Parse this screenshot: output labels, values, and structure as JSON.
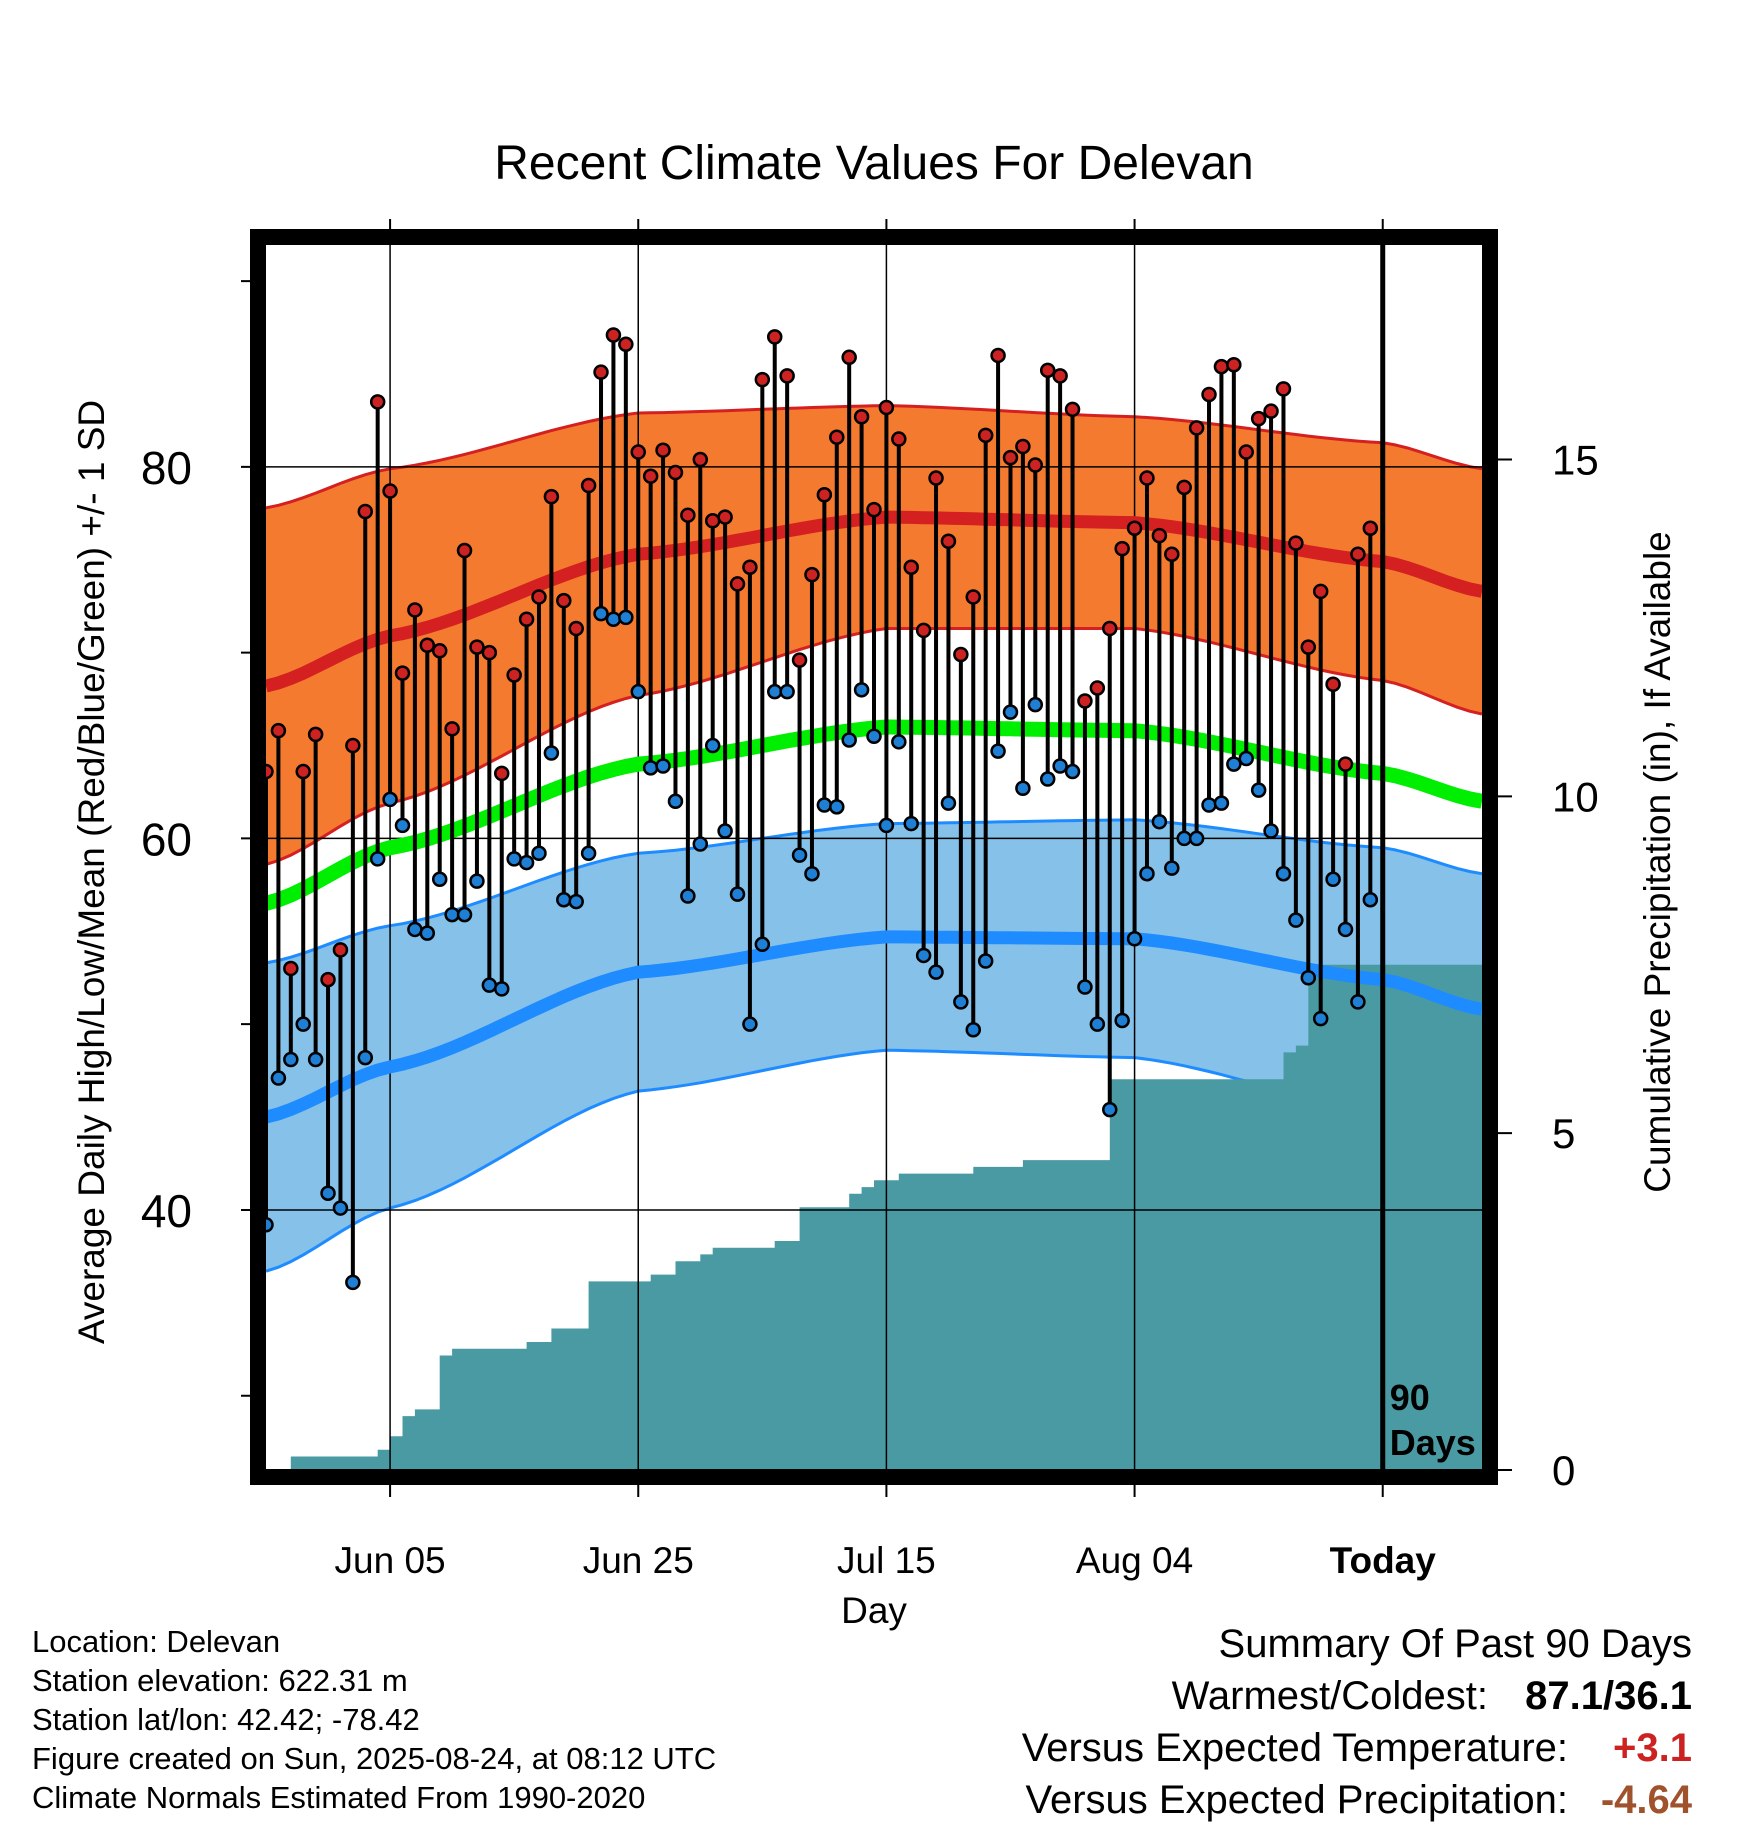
{
  "title": "Recent Climate Values For Delevan",
  "info": {
    "location": "Location: Delevan",
    "elevation": "Station elevation: 622.31 m",
    "latlon": "Station lat/lon: 42.42; -78.42",
    "created": "Figure created on Sun, 2025-08-24, at 08:12 UTC",
    "normals": "Climate Normals Estimated From 1990-2020"
  },
  "summary": {
    "heading": "Summary Of Past 90 Days",
    "warmest_label": "Warmest/Coldest:",
    "warmest_value": "87.1/36.1",
    "temp_label": "Versus Expected Temperature:",
    "temp_value": "+3.1",
    "temp_color": "#cc2222",
    "precip_label": "Versus Expected Precipitation:",
    "precip_value": "-4.64",
    "precip_color": "#a0522d"
  },
  "chart_data": {
    "type": "line",
    "title": "Recent Climate Values For Delevan",
    "xlabel": "Day",
    "ylabel": "Average Daily High/Low/Mean (Red/Blue/Green) +/- 1 SD",
    "y2label": "Cumulative Precipitation (in), If Available",
    "x_unit": "days relative to today (2025-08-24)",
    "xlim": [
      -90,
      8
    ],
    "ylim": [
      26,
      92
    ],
    "y2lim": [
      0,
      18.2
    ],
    "x_ticks": [
      {
        "x": -80,
        "label": "Jun 05"
      },
      {
        "x": -60,
        "label": "Jun 25"
      },
      {
        "x": -40,
        "label": "Jul 15"
      },
      {
        "x": -20,
        "label": "Aug 04"
      },
      {
        "x": 0,
        "label": "Today"
      }
    ],
    "y_ticks": [
      40,
      60,
      80
    ],
    "y2_ticks": [
      0,
      5,
      10,
      15
    ],
    "today_marker_label": [
      "90",
      "Days"
    ],
    "colors": {
      "high_band": "#f47a30",
      "high_mean": "#d42020",
      "low_band": "#85c1e8",
      "low_mean": "#1e8cff",
      "mean": "#00ee00",
      "precip": "#4a9aa4",
      "high_dot": "#cc2222",
      "low_dot": "#1e7fd4"
    },
    "normals": {
      "x": [
        -90,
        -80,
        -60,
        -40,
        -20,
        0,
        8
      ],
      "high_mean": [
        68.2,
        70.9,
        75.3,
        77.3,
        77.0,
        74.9,
        73.3
      ],
      "high_sd": [
        9.6,
        9.0,
        7.6,
        6.0,
        5.7,
        6.4,
        6.6
      ],
      "low_mean": [
        45.0,
        47.7,
        52.8,
        54.7,
        54.6,
        52.4,
        50.8
      ],
      "low_sd": [
        8.3,
        7.6,
        6.4,
        6.1,
        6.4,
        7.1,
        7.3
      ],
      "mean": [
        56.5,
        59.5,
        64.0,
        66.0,
        65.8,
        63.5,
        62.0
      ]
    },
    "series": [
      {
        "name": "High",
        "x": [
          -90,
          -89,
          -88,
          -87,
          -86,
          -85,
          -84,
          -83,
          -82,
          -81,
          -80,
          -79,
          -78,
          -77,
          -76,
          -75,
          -74,
          -73,
          -72,
          -71,
          -70,
          -69,
          -68,
          -67,
          -66,
          -65,
          -64,
          -63,
          -62,
          -61,
          -60,
          -59,
          -58,
          -57,
          -56,
          -55,
          -54,
          -53,
          -52,
          -51,
          -50,
          -49,
          -48,
          -47,
          -46,
          -45,
          -44,
          -43,
          -42,
          -41,
          -40,
          -39,
          -38,
          -37,
          -36,
          -35,
          -34,
          -33,
          -32,
          -31,
          -30,
          -29,
          -28,
          -27,
          -26,
          -25,
          -24,
          -23,
          -22,
          -21,
          -20,
          -19,
          -18,
          -17,
          -16,
          -15,
          -14,
          -13,
          -12,
          -11,
          -10,
          -9,
          -8,
          -7,
          -6,
          -5,
          -4,
          -3,
          -2,
          -1
        ],
        "values": [
          63.6,
          65.8,
          53.0,
          63.6,
          65.6,
          52.4,
          54.0,
          65.0,
          77.6,
          83.5,
          78.7,
          68.9,
          72.3,
          70.4,
          70.1,
          65.9,
          75.5,
          70.3,
          70.0,
          63.5,
          68.8,
          71.8,
          73.0,
          78.4,
          72.8,
          71.3,
          79.0,
          85.1,
          87.1,
          86.6,
          80.8,
          79.5,
          80.9,
          79.7,
          77.4,
          80.4,
          77.1,
          77.3,
          73.7,
          74.6,
          84.7,
          87.0,
          84.9,
          69.6,
          74.2,
          78.5,
          81.6,
          85.9,
          82.7,
          77.7,
          83.2,
          81.5,
          74.6,
          71.2,
          79.4,
          76.0,
          69.9,
          73.0,
          81.7,
          86.0,
          80.5,
          81.1,
          80.1,
          85.2,
          84.9,
          83.1,
          67.4,
          68.1,
          71.3,
          75.6,
          76.7,
          79.4,
          76.3,
          75.3,
          78.9,
          82.1,
          83.9,
          85.4,
          85.5,
          80.8,
          82.6,
          83.0,
          84.2,
          75.9,
          70.3,
          73.3,
          68.3,
          64.0,
          75.3,
          76.7
        ]
      },
      {
        "name": "Low",
        "x": [
          -90,
          -89,
          -88,
          -87,
          -86,
          -85,
          -84,
          -83,
          -82,
          -81,
          -80,
          -79,
          -78,
          -77,
          -76,
          -75,
          -74,
          -73,
          -72,
          -71,
          -70,
          -69,
          -68,
          -67,
          -66,
          -65,
          -64,
          -63,
          -62,
          -61,
          -60,
          -59,
          -58,
          -57,
          -56,
          -55,
          -54,
          -53,
          -52,
          -51,
          -50,
          -49,
          -48,
          -47,
          -46,
          -45,
          -44,
          -43,
          -42,
          -41,
          -40,
          -39,
          -38,
          -37,
          -36,
          -35,
          -34,
          -33,
          -32,
          -31,
          -30,
          -29,
          -28,
          -27,
          -26,
          -25,
          -24,
          -23,
          -22,
          -21,
          -20,
          -19,
          -18,
          -17,
          -16,
          -15,
          -14,
          -13,
          -12,
          -11,
          -10,
          -9,
          -8,
          -7,
          -6,
          -5,
          -4,
          -3,
          -2,
          -1
        ],
        "values": [
          39.2,
          47.1,
          48.1,
          50.0,
          48.1,
          40.9,
          40.1,
          36.1,
          48.2,
          58.9,
          62.1,
          60.7,
          55.1,
          54.9,
          57.8,
          55.9,
          55.9,
          57.7,
          52.1,
          51.9,
          58.9,
          58.7,
          59.2,
          64.6,
          56.7,
          56.6,
          59.2,
          72.1,
          71.8,
          71.9,
          67.9,
          63.8,
          63.9,
          62.0,
          56.9,
          59.7,
          65.0,
          60.4,
          57.0,
          50.0,
          54.3,
          67.9,
          67.9,
          59.1,
          58.1,
          61.8,
          61.7,
          65.3,
          68.0,
          65.5,
          60.7,
          65.2,
          60.8,
          53.7,
          52.8,
          61.9,
          51.2,
          49.7,
          53.4,
          64.7,
          66.8,
          62.7,
          67.2,
          63.2,
          63.9,
          63.6,
          52.0,
          50.0,
          45.4,
          50.2,
          54.6,
          58.1,
          60.9,
          58.4,
          60.0,
          60.0,
          61.8,
          61.9,
          64.0,
          64.3,
          62.6,
          60.4,
          58.1,
          55.6,
          52.5,
          50.3,
          57.8,
          55.1,
          51.2,
          56.7
        ]
      },
      {
        "name": "Cumulative Precipitation",
        "x": [
          -88,
          -81,
          -80,
          -79,
          -78,
          -76,
          -75,
          -72,
          -70,
          -69,
          -67,
          -64,
          -63,
          -61,
          -60,
          -59,
          -58,
          -57,
          -56,
          -55,
          -54,
          -53,
          -51,
          -50,
          -49,
          -47,
          -46,
          -44,
          -43,
          -42,
          -41,
          -40,
          -39,
          -37,
          -36,
          -34,
          -33,
          -31,
          -30,
          -29,
          -28,
          -26,
          -25,
          -23,
          -22,
          -21,
          -20,
          -19,
          -17,
          -15,
          -14,
          -12,
          -11,
          -9,
          -8,
          -7,
          -6,
          -5,
          -3,
          -2,
          -1,
          0,
          8
        ],
        "values": [
          0.2,
          0.3,
          0.5,
          0.8,
          0.9,
          1.7,
          1.8,
          1.8,
          1.8,
          1.9,
          2.1,
          2.8,
          2.8,
          2.8,
          2.8,
          2.9,
          2.9,
          3.1,
          3.1,
          3.2,
          3.3,
          3.3,
          3.3,
          3.3,
          3.4,
          3.9,
          3.9,
          3.9,
          4.1,
          4.2,
          4.3,
          4.3,
          4.4,
          4.4,
          4.4,
          4.4,
          4.5,
          4.5,
          4.5,
          4.6,
          4.6,
          4.6,
          4.6,
          4.6,
          5.8,
          5.8,
          5.8,
          5.8,
          5.8,
          5.8,
          5.8,
          5.8,
          5.8,
          5.8,
          6.2,
          6.3,
          7.5,
          7.5,
          7.5,
          7.5,
          7.5,
          7.5,
          7.5
        ]
      }
    ]
  }
}
